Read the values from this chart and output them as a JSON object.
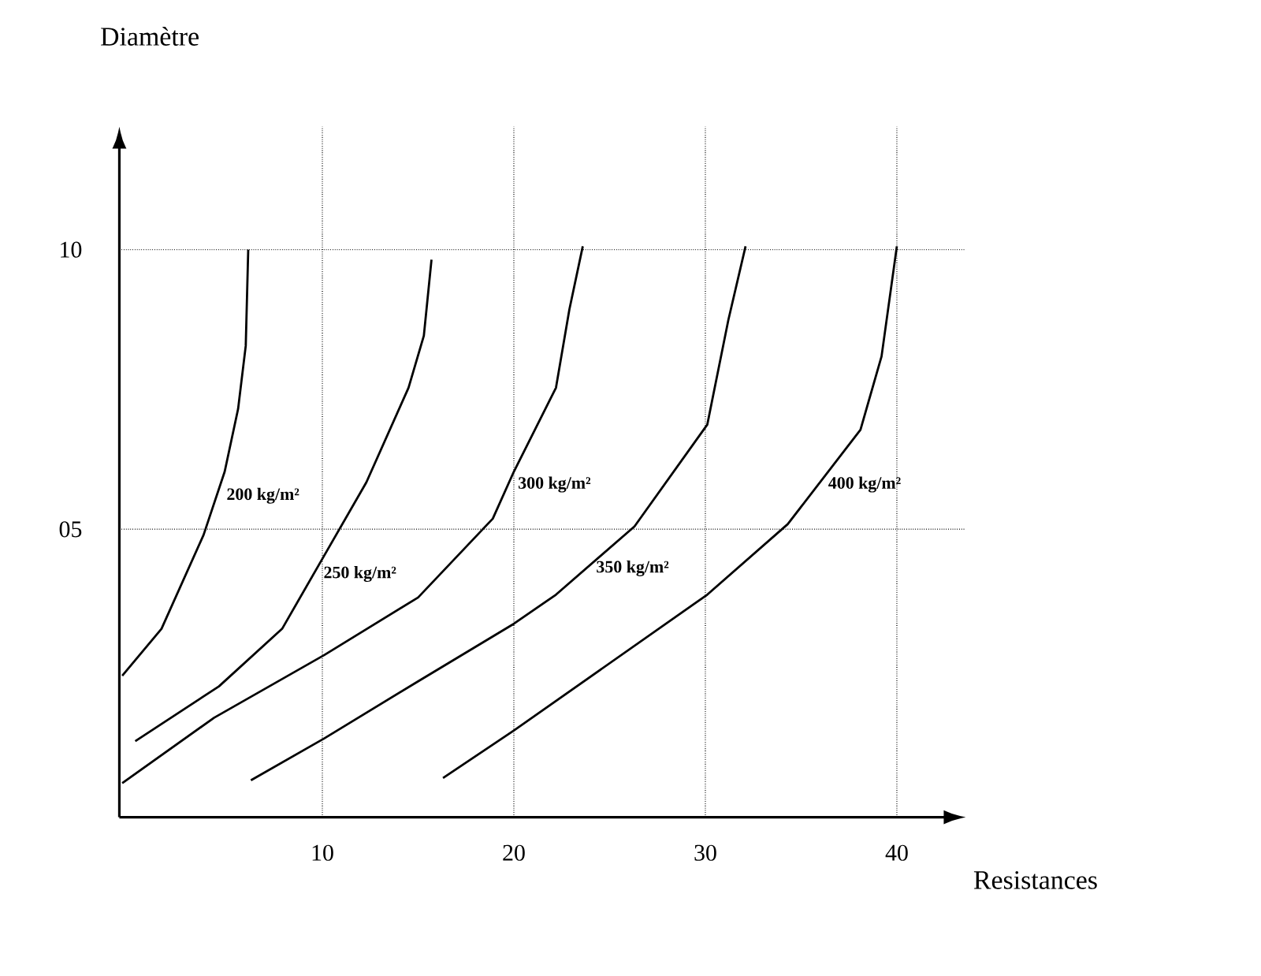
{
  "chart_data": {
    "type": "line",
    "xlabel": "Resistances",
    "ylabel": "Diamètre",
    "xlim": [
      -0.6,
      43.6
    ],
    "ylim": [
      -0.15,
      12.2
    ],
    "xticks": [
      10,
      20,
      30,
      40
    ],
    "yticks": [
      {
        "value": 5,
        "label": "05"
      },
      10
    ],
    "grid": true,
    "marker": "none",
    "line_style": "solid",
    "series": [
      {
        "name": "200 kg/m²",
        "color": "#000000",
        "x": [
          -0.45,
          1.6,
          3.8,
          4.9,
          5.6,
          6.0,
          6.13
        ],
        "values": [
          2.38,
          3.22,
          4.9,
          6.03,
          7.15,
          8.28,
          10.0
        ]
      },
      {
        "name": "250 kg/m²",
        "color": "#000000",
        "x": [
          0.23,
          4.6,
          7.9,
          10.1,
          12.3,
          14.5,
          15.3,
          15.7
        ],
        "values": [
          1.21,
          2.19,
          3.22,
          4.53,
          5.84,
          7.53,
          8.46,
          9.82
        ]
      },
      {
        "name": "300 kg/m²",
        "color": "#000000",
        "x": [
          -0.45,
          4.35,
          10.1,
          15.0,
          18.9,
          20.0,
          22.2,
          22.9,
          23.6
        ],
        "values": [
          0.46,
          1.63,
          2.75,
          3.78,
          5.19,
          6.03,
          7.53,
          8.93,
          10.06
        ]
      },
      {
        "name": "350 kg/m²",
        "color": "#000000",
        "x": [
          6.27,
          10.1,
          15.0,
          20.0,
          22.2,
          26.3,
          30.1,
          31.2,
          32.1
        ],
        "values": [
          0.51,
          1.26,
          2.28,
          3.31,
          3.83,
          5.05,
          6.87,
          8.74,
          10.06
        ]
      },
      {
        "name": "400 kg/m²",
        "color": "#000000",
        "x": [
          16.3,
          20.0,
          30.1,
          34.3,
          38.1,
          39.2,
          40.0
        ],
        "values": [
          0.55,
          1.4,
          3.83,
          5.09,
          6.78,
          8.09,
          10.06
        ]
      }
    ]
  }
}
